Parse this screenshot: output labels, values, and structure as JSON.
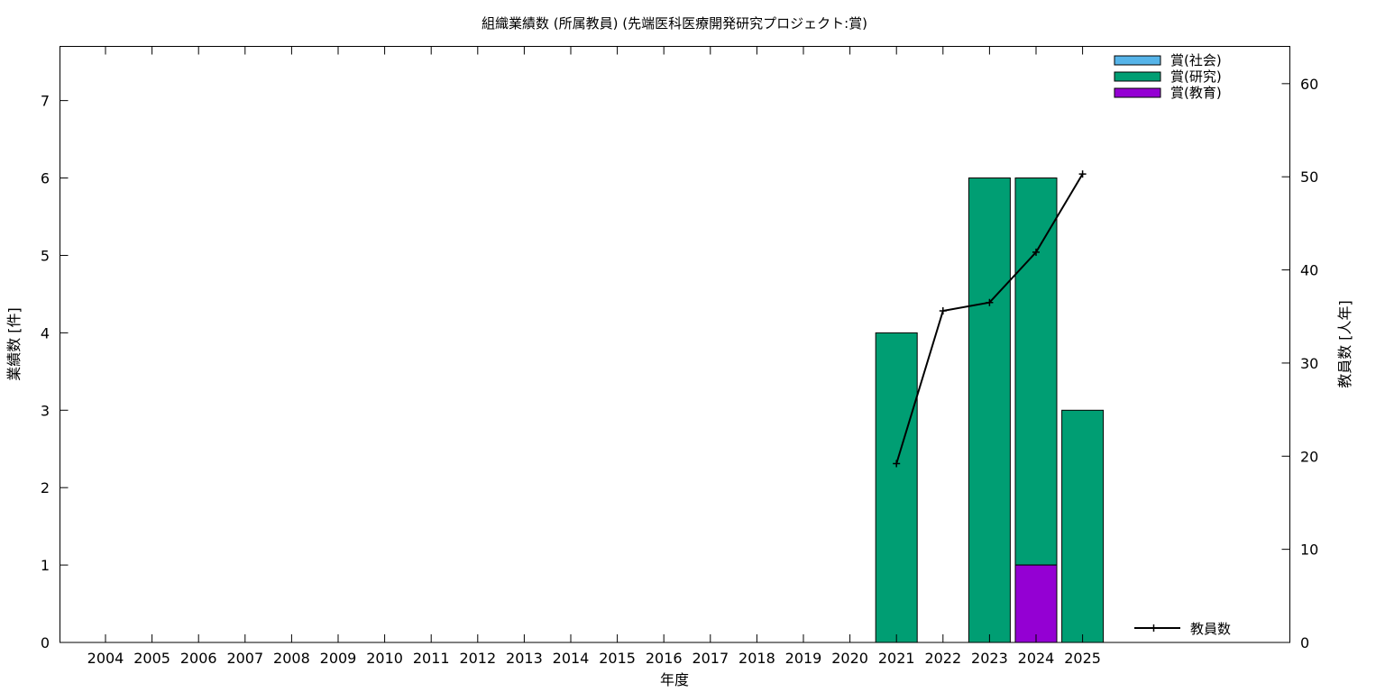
{
  "chart_data": {
    "type": "bar",
    "title": "組織業績数 (所属教員) (先端医科医療開発研究プロジェクト:賞)",
    "xlabel": "年度",
    "ylabel": "業績数 [件]",
    "y2label": "教員数 [人年]",
    "categories": [
      "2004",
      "2005",
      "2006",
      "2007",
      "2008",
      "2009",
      "2010",
      "2011",
      "2012",
      "2013",
      "2014",
      "2015",
      "2016",
      "2017",
      "2018",
      "2019",
      "2020",
      "2021",
      "2022",
      "2023",
      "2024",
      "2025"
    ],
    "ylim": [
      0,
      7.7
    ],
    "yticks": [
      0,
      1,
      2,
      3,
      4,
      5,
      6,
      7
    ],
    "y2lim": [
      0,
      64
    ],
    "y2ticks": [
      0,
      10,
      20,
      30,
      40,
      50,
      60
    ],
    "stacked": true,
    "series": [
      {
        "name": "賞(教育)",
        "color": "#9400d3",
        "values": [
          0,
          0,
          0,
          0,
          0,
          0,
          0,
          0,
          0,
          0,
          0,
          0,
          0,
          0,
          0,
          0,
          0,
          0,
          0,
          0,
          1,
          0
        ]
      },
      {
        "name": "賞(研究)",
        "color": "#009e73",
        "values": [
          0,
          0,
          0,
          0,
          0,
          0,
          0,
          0,
          0,
          0,
          0,
          0,
          0,
          0,
          0,
          0,
          0,
          4,
          0,
          6,
          5,
          3
        ]
      },
      {
        "name": "賞(社会)",
        "color": "#56b4e9",
        "values": [
          0,
          0,
          0,
          0,
          0,
          0,
          0,
          0,
          0,
          0,
          0,
          0,
          0,
          0,
          0,
          0,
          0,
          0,
          0,
          0,
          0,
          0
        ]
      }
    ],
    "legend_order": [
      "賞(社会)",
      "賞(研究)",
      "賞(教育)"
    ],
    "legend_position": "top-right",
    "line_series": {
      "name": "教員数",
      "axis": "right",
      "color": "#000000",
      "x": [
        "2021",
        "2022",
        "2023",
        "2024",
        "2025"
      ],
      "values": [
        19.2,
        35.6,
        36.5,
        41.9,
        50.3
      ]
    },
    "line_legend_position": "bottom-right",
    "grid": false
  }
}
